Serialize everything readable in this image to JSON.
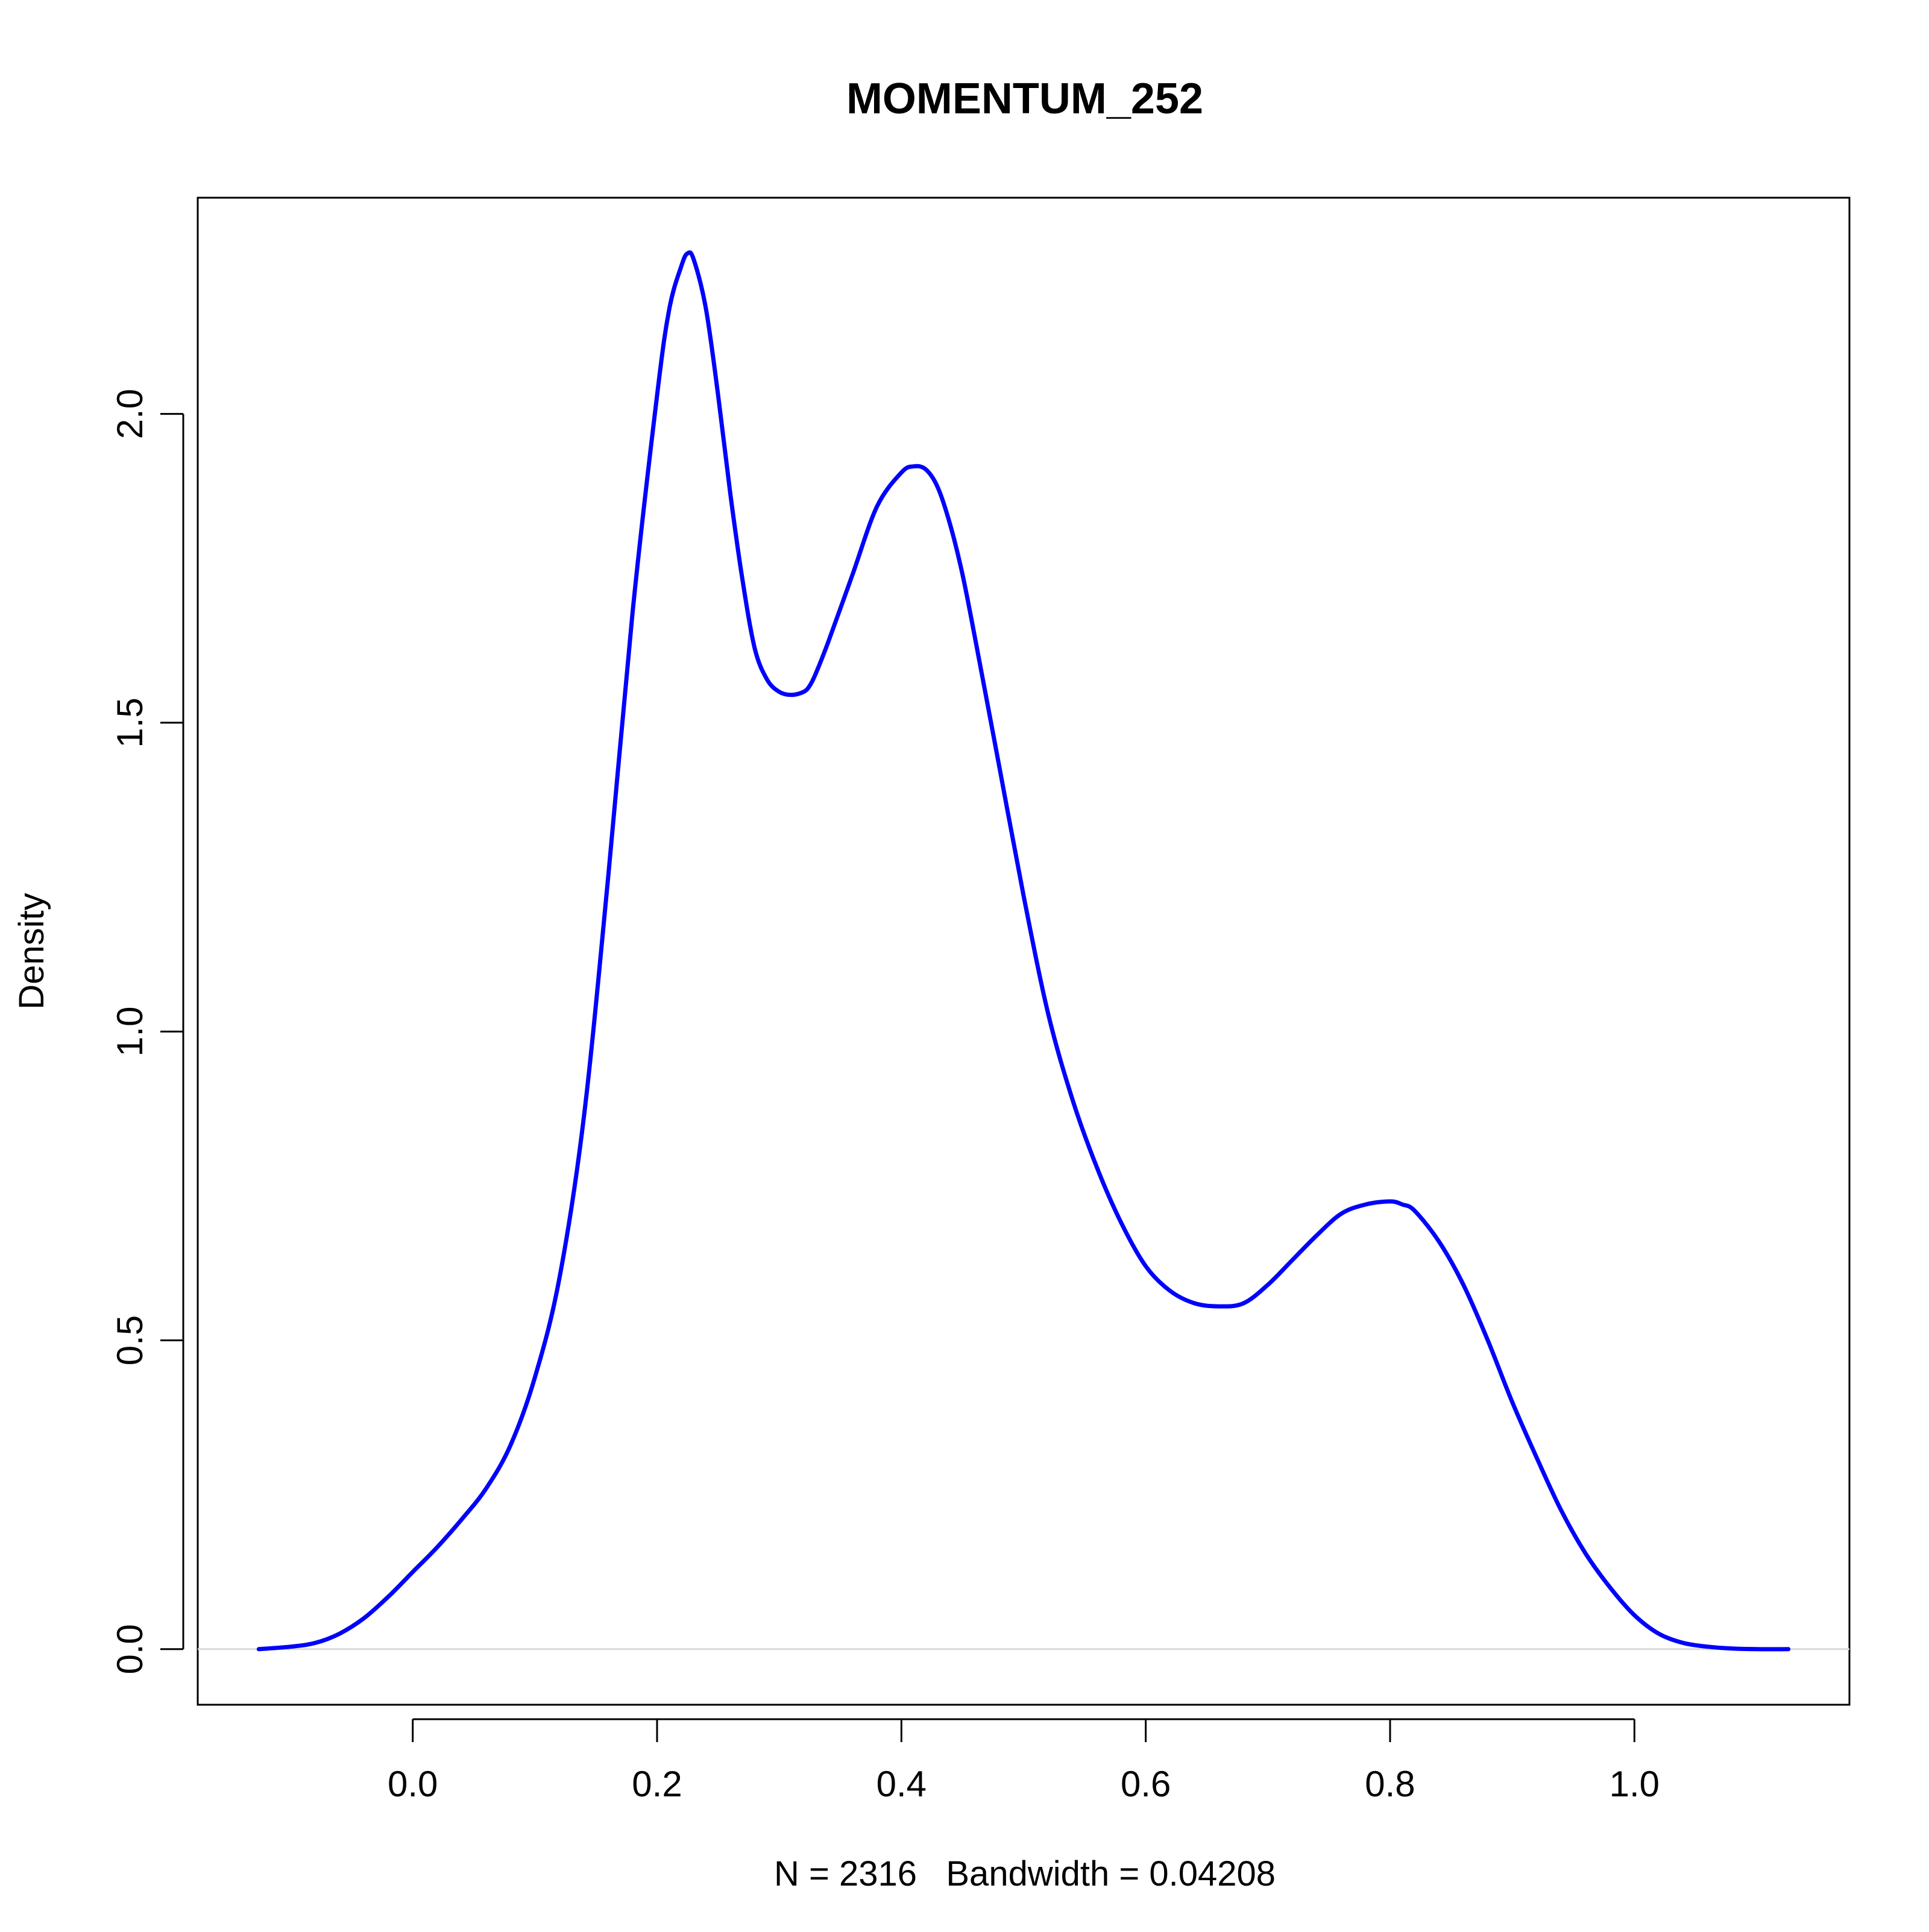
{
  "chart_data": {
    "type": "line",
    "title": "MOMENTUM_252",
    "xlabel": "N = 2316   Bandwidth = 0.04208",
    "ylabel": "Density",
    "xlim": [
      -0.176,
      1.176
    ],
    "ylim": [
      -0.09,
      2.35
    ],
    "x_ticks": [
      0.0,
      0.2,
      0.4,
      0.6,
      0.8,
      1.0
    ],
    "x_tick_labels": [
      "0.0",
      "0.2",
      "0.4",
      "0.6",
      "0.8",
      "1.0"
    ],
    "y_ticks": [
      0.0,
      0.5,
      1.0,
      1.5,
      2.0
    ],
    "y_tick_labels": [
      "0.0",
      "0.5",
      "1.0",
      "1.5",
      "2.0"
    ],
    "grid": false,
    "baseline": 0,
    "line_color": "#0000ff",
    "baseline_color": "#d9d9d9",
    "series": [
      {
        "x": [
          -0.126,
          -0.1,
          -0.08,
          -0.06,
          -0.04,
          -0.02,
          0.0,
          0.02,
          0.04,
          0.06,
          0.08,
          0.1,
          0.12,
          0.14,
          0.16,
          0.18,
          0.2,
          0.21,
          0.22,
          0.225,
          0.23,
          0.24,
          0.25,
          0.26,
          0.27,
          0.28,
          0.29,
          0.3,
          0.31,
          0.32,
          0.325,
          0.33,
          0.34,
          0.36,
          0.38,
          0.4,
          0.41,
          0.42,
          0.43,
          0.44,
          0.45,
          0.46,
          0.48,
          0.5,
          0.52,
          0.54,
          0.56,
          0.58,
          0.6,
          0.62,
          0.64,
          0.66,
          0.68,
          0.7,
          0.72,
          0.74,
          0.76,
          0.78,
          0.8,
          0.81,
          0.82,
          0.84,
          0.86,
          0.88,
          0.9,
          0.92,
          0.94,
          0.96,
          0.98,
          1.0,
          1.02,
          1.04,
          1.06,
          1.08,
          1.1,
          1.126
        ],
        "y": [
          0.0,
          0.004,
          0.01,
          0.025,
          0.05,
          0.085,
          0.125,
          0.165,
          0.21,
          0.26,
          0.33,
          0.44,
          0.6,
          0.86,
          1.25,
          1.68,
          2.03,
          2.17,
          2.24,
          2.26,
          2.25,
          2.17,
          2.03,
          1.87,
          1.73,
          1.62,
          1.57,
          1.55,
          1.545,
          1.55,
          1.56,
          1.58,
          1.63,
          1.74,
          1.85,
          1.905,
          1.915,
          1.91,
          1.88,
          1.82,
          1.74,
          1.64,
          1.43,
          1.22,
          1.03,
          0.89,
          0.78,
          0.69,
          0.62,
          0.58,
          0.56,
          0.555,
          0.56,
          0.59,
          0.63,
          0.67,
          0.705,
          0.72,
          0.725,
          0.72,
          0.71,
          0.66,
          0.59,
          0.5,
          0.4,
          0.31,
          0.225,
          0.155,
          0.1,
          0.055,
          0.025,
          0.01,
          0.004,
          0.001,
          0.0,
          0.0
        ]
      }
    ]
  }
}
